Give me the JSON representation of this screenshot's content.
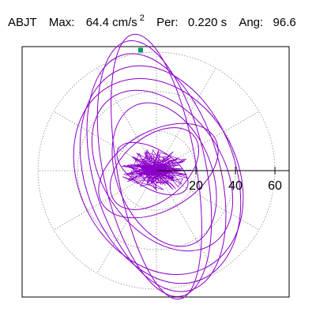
{
  "header": {
    "station": "ABJT",
    "max_label": "Max:",
    "max_value": "64.4",
    "max_unit": "cm/s",
    "max_unit_exp": "2",
    "per_label": "Per:",
    "per_value": "0.220",
    "per_unit": "s",
    "ang_label": "Ang:",
    "ang_value": "96.6"
  },
  "chart_data": {
    "type": "scatter",
    "title": "",
    "xlabel": "",
    "ylabel": "",
    "tick_labels": [
      "20",
      "40",
      "60"
    ],
    "ring_values": [
      20,
      40,
      60
    ],
    "radial_lines_deg": [
      0,
      30,
      60,
      90,
      120,
      150,
      180,
      210,
      240,
      270,
      300,
      330
    ],
    "grid": true,
    "peak_marker": {
      "x": -8,
      "y": 61
    },
    "ellipses": [
      {
        "a": 68,
        "b": 20,
        "rot": 100,
        "cx": 0,
        "cy": 2
      },
      {
        "a": 66,
        "b": 26,
        "rot": 102,
        "cx": -1,
        "cy": 1
      },
      {
        "a": 62,
        "b": 32,
        "rot": 106,
        "cx": 0,
        "cy": -1
      },
      {
        "a": 57,
        "b": 38,
        "rot": 110,
        "cx": 2,
        "cy": -2
      },
      {
        "a": 52,
        "b": 40,
        "rot": 118,
        "cx": 1,
        "cy": -3
      },
      {
        "a": 45,
        "b": 30,
        "rot": 125,
        "cx": 3,
        "cy": 0
      },
      {
        "a": 38,
        "b": 24,
        "rot": 112,
        "cx": 4,
        "cy": -2
      },
      {
        "a": 33,
        "b": 20,
        "rot": 30,
        "cx": 1,
        "cy": 0
      },
      {
        "a": 26,
        "b": 16,
        "rot": 40,
        "cx": -1,
        "cy": 1
      },
      {
        "a": 20,
        "b": 10,
        "rot": 150,
        "cx": -2,
        "cy": 1
      }
    ],
    "core": {
      "radius": 14,
      "points": 260,
      "seed": 7
    },
    "colors": {
      "trace": "#8b00c8",
      "marker": "#009966",
      "grid": "#8a8a8a",
      "axis": "#000000"
    }
  }
}
